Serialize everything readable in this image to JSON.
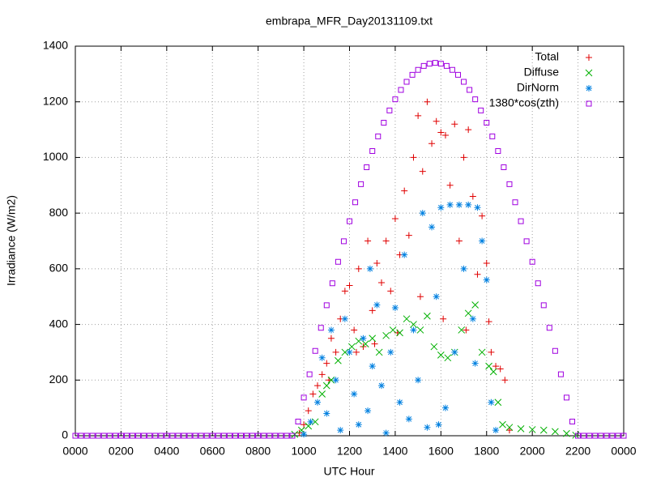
{
  "chart_data": {
    "type": "scatter",
    "title": "embrapa_MFR_Day20131109.txt",
    "x_label": "UTC Hour",
    "y_label": "Irradiance (W/m2)",
    "xlim": [
      0,
      24
    ],
    "ylim": [
      0,
      1400
    ],
    "xticks": [
      {
        "value": 0,
        "label": "0000"
      },
      {
        "value": 2,
        "label": "0200"
      },
      {
        "value": 4,
        "label": "0400"
      },
      {
        "value": 6,
        "label": "0600"
      },
      {
        "value": 8,
        "label": "0800"
      },
      {
        "value": 10,
        "label": "1000"
      },
      {
        "value": 12,
        "label": "1200"
      },
      {
        "value": 14,
        "label": "1400"
      },
      {
        "value": 16,
        "label": "1600"
      },
      {
        "value": 18,
        "label": "1800"
      },
      {
        "value": 20,
        "label": "2000"
      },
      {
        "value": 22,
        "label": "2200"
      },
      {
        "value": 24,
        "label": "0000"
      }
    ],
    "yticks": [
      0,
      200,
      400,
      600,
      800,
      1000,
      1200,
      1400
    ],
    "grid": true,
    "legend": "top-right",
    "series": [
      {
        "name": "Total",
        "color": "#e00000",
        "marker": "plus",
        "x": [
          9.8,
          10.0,
          10.2,
          10.4,
          10.6,
          10.8,
          11.0,
          11.2,
          11.4,
          11.6,
          11.8,
          12.0,
          12.2,
          12.4,
          12.6,
          12.8,
          13.0,
          13.2,
          13.4,
          13.6,
          13.8,
          14.0,
          14.2,
          14.4,
          14.6,
          14.8,
          15.0,
          15.2,
          15.4,
          15.6,
          15.8,
          16.0,
          16.2,
          16.4,
          16.6,
          16.8,
          17.0,
          17.2,
          17.4,
          17.6,
          17.8,
          18.0,
          18.2,
          18.4,
          18.6,
          18.8,
          19.0,
          11.1,
          12.3,
          13.1,
          14.1,
          15.1,
          16.1,
          17.1,
          18.1
        ],
        "values": [
          10,
          40,
          90,
          150,
          180,
          220,
          260,
          350,
          300,
          420,
          520,
          540,
          380,
          600,
          320,
          700,
          450,
          620,
          550,
          700,
          520,
          780,
          650,
          880,
          720,
          1000,
          1150,
          950,
          1200,
          1050,
          1130,
          1090,
          1080,
          900,
          1120,
          700,
          1000,
          1100,
          860,
          580,
          790,
          620,
          300,
          250,
          240,
          200,
          20,
          200,
          300,
          330,
          370,
          500,
          420,
          380,
          410
        ]
      },
      {
        "name": "Diffuse",
        "color": "#00b000",
        "marker": "cross",
        "x": [
          9.6,
          9.9,
          10.2,
          10.5,
          10.8,
          11.0,
          11.2,
          11.5,
          11.8,
          12.1,
          12.4,
          12.7,
          13.0,
          13.3,
          13.6,
          13.9,
          14.2,
          14.5,
          14.8,
          15.1,
          15.4,
          15.7,
          16.0,
          16.3,
          16.6,
          16.9,
          17.2,
          17.5,
          17.8,
          18.1,
          18.3,
          18.5,
          18.7,
          19.0,
          19.5,
          20.0,
          20.5,
          21.0,
          21.5,
          21.9
        ],
        "values": [
          5,
          20,
          35,
          50,
          150,
          180,
          200,
          270,
          300,
          320,
          340,
          330,
          350,
          300,
          360,
          380,
          370,
          420,
          400,
          380,
          430,
          320,
          290,
          280,
          300,
          380,
          440,
          470,
          300,
          250,
          230,
          120,
          40,
          30,
          25,
          22,
          20,
          15,
          8,
          2
        ]
      },
      {
        "name": "DirNorm",
        "color": "#0080e0",
        "marker": "star",
        "x": [
          10.0,
          10.3,
          10.6,
          10.8,
          11.0,
          11.2,
          11.4,
          11.6,
          11.8,
          12.0,
          12.2,
          12.4,
          12.6,
          12.8,
          13.0,
          13.2,
          13.4,
          13.6,
          13.8,
          14.0,
          14.2,
          14.4,
          14.6,
          14.8,
          15.0,
          15.2,
          15.4,
          15.6,
          15.8,
          16.0,
          16.2,
          16.4,
          16.6,
          16.8,
          17.0,
          17.2,
          17.4,
          17.6,
          17.8,
          18.0,
          18.2,
          18.4,
          12.9,
          15.9,
          17.5
        ],
        "values": [
          5,
          50,
          120,
          280,
          80,
          380,
          200,
          20,
          420,
          300,
          150,
          40,
          350,
          90,
          250,
          470,
          180,
          10,
          300,
          460,
          120,
          650,
          60,
          380,
          200,
          800,
          30,
          750,
          500,
          820,
          100,
          830,
          300,
          830,
          600,
          830,
          420,
          820,
          700,
          560,
          120,
          20,
          600,
          40,
          260
        ]
      },
      {
        "name": "1380*cos(zth)",
        "color": "#a000e0",
        "marker": "square",
        "x": [
          0,
          0.25,
          0.5,
          0.75,
          1,
          1.25,
          1.5,
          1.75,
          2,
          2.25,
          2.5,
          2.75,
          3,
          3.25,
          3.5,
          3.75,
          4,
          4.25,
          4.5,
          4.75,
          5,
          5.25,
          5.5,
          5.75,
          6,
          6.25,
          6.5,
          6.75,
          7,
          7.25,
          7.5,
          7.75,
          8,
          8.25,
          8.5,
          8.75,
          9,
          9.25,
          9.5,
          9.75,
          10,
          10.25,
          10.5,
          10.75,
          11,
          11.25,
          11.5,
          11.75,
          12,
          12.25,
          12.5,
          12.75,
          13,
          13.25,
          13.5,
          13.75,
          14,
          14.25,
          14.5,
          14.75,
          15,
          15.25,
          15.5,
          15.75,
          16,
          16.25,
          16.5,
          16.75,
          17,
          17.25,
          17.5,
          17.75,
          18,
          18.25,
          18.5,
          18.75,
          19,
          19.25,
          19.5,
          19.75,
          20,
          20.25,
          20.5,
          20.75,
          21,
          21.25,
          21.5,
          21.75,
          22,
          22.25,
          22.5,
          22.75,
          23,
          23.25,
          23.5,
          23.75,
          24
        ],
        "values": [
          0,
          0,
          0,
          0,
          0,
          0,
          0,
          0,
          0,
          0,
          0,
          0,
          0,
          0,
          0,
          0,
          0,
          0,
          0,
          0,
          0,
          0,
          0,
          0,
          0,
          0,
          0,
          0,
          0,
          0,
          0,
          0,
          0,
          0,
          0,
          0,
          0,
          0,
          0,
          51,
          137,
          221,
          305,
          388,
          469,
          548,
          625,
          699,
          771,
          839,
          904,
          965,
          1023,
          1076,
          1125,
          1169,
          1209,
          1243,
          1272,
          1297,
          1315,
          1329,
          1337,
          1340,
          1337,
          1329,
          1315,
          1297,
          1272,
          1243,
          1209,
          1169,
          1125,
          1076,
          1023,
          965,
          904,
          839,
          771,
          699,
          625,
          548,
          469,
          388,
          305,
          221,
          137,
          51,
          0,
          0,
          0,
          0,
          0,
          0,
          0,
          0,
          0
        ]
      }
    ]
  }
}
